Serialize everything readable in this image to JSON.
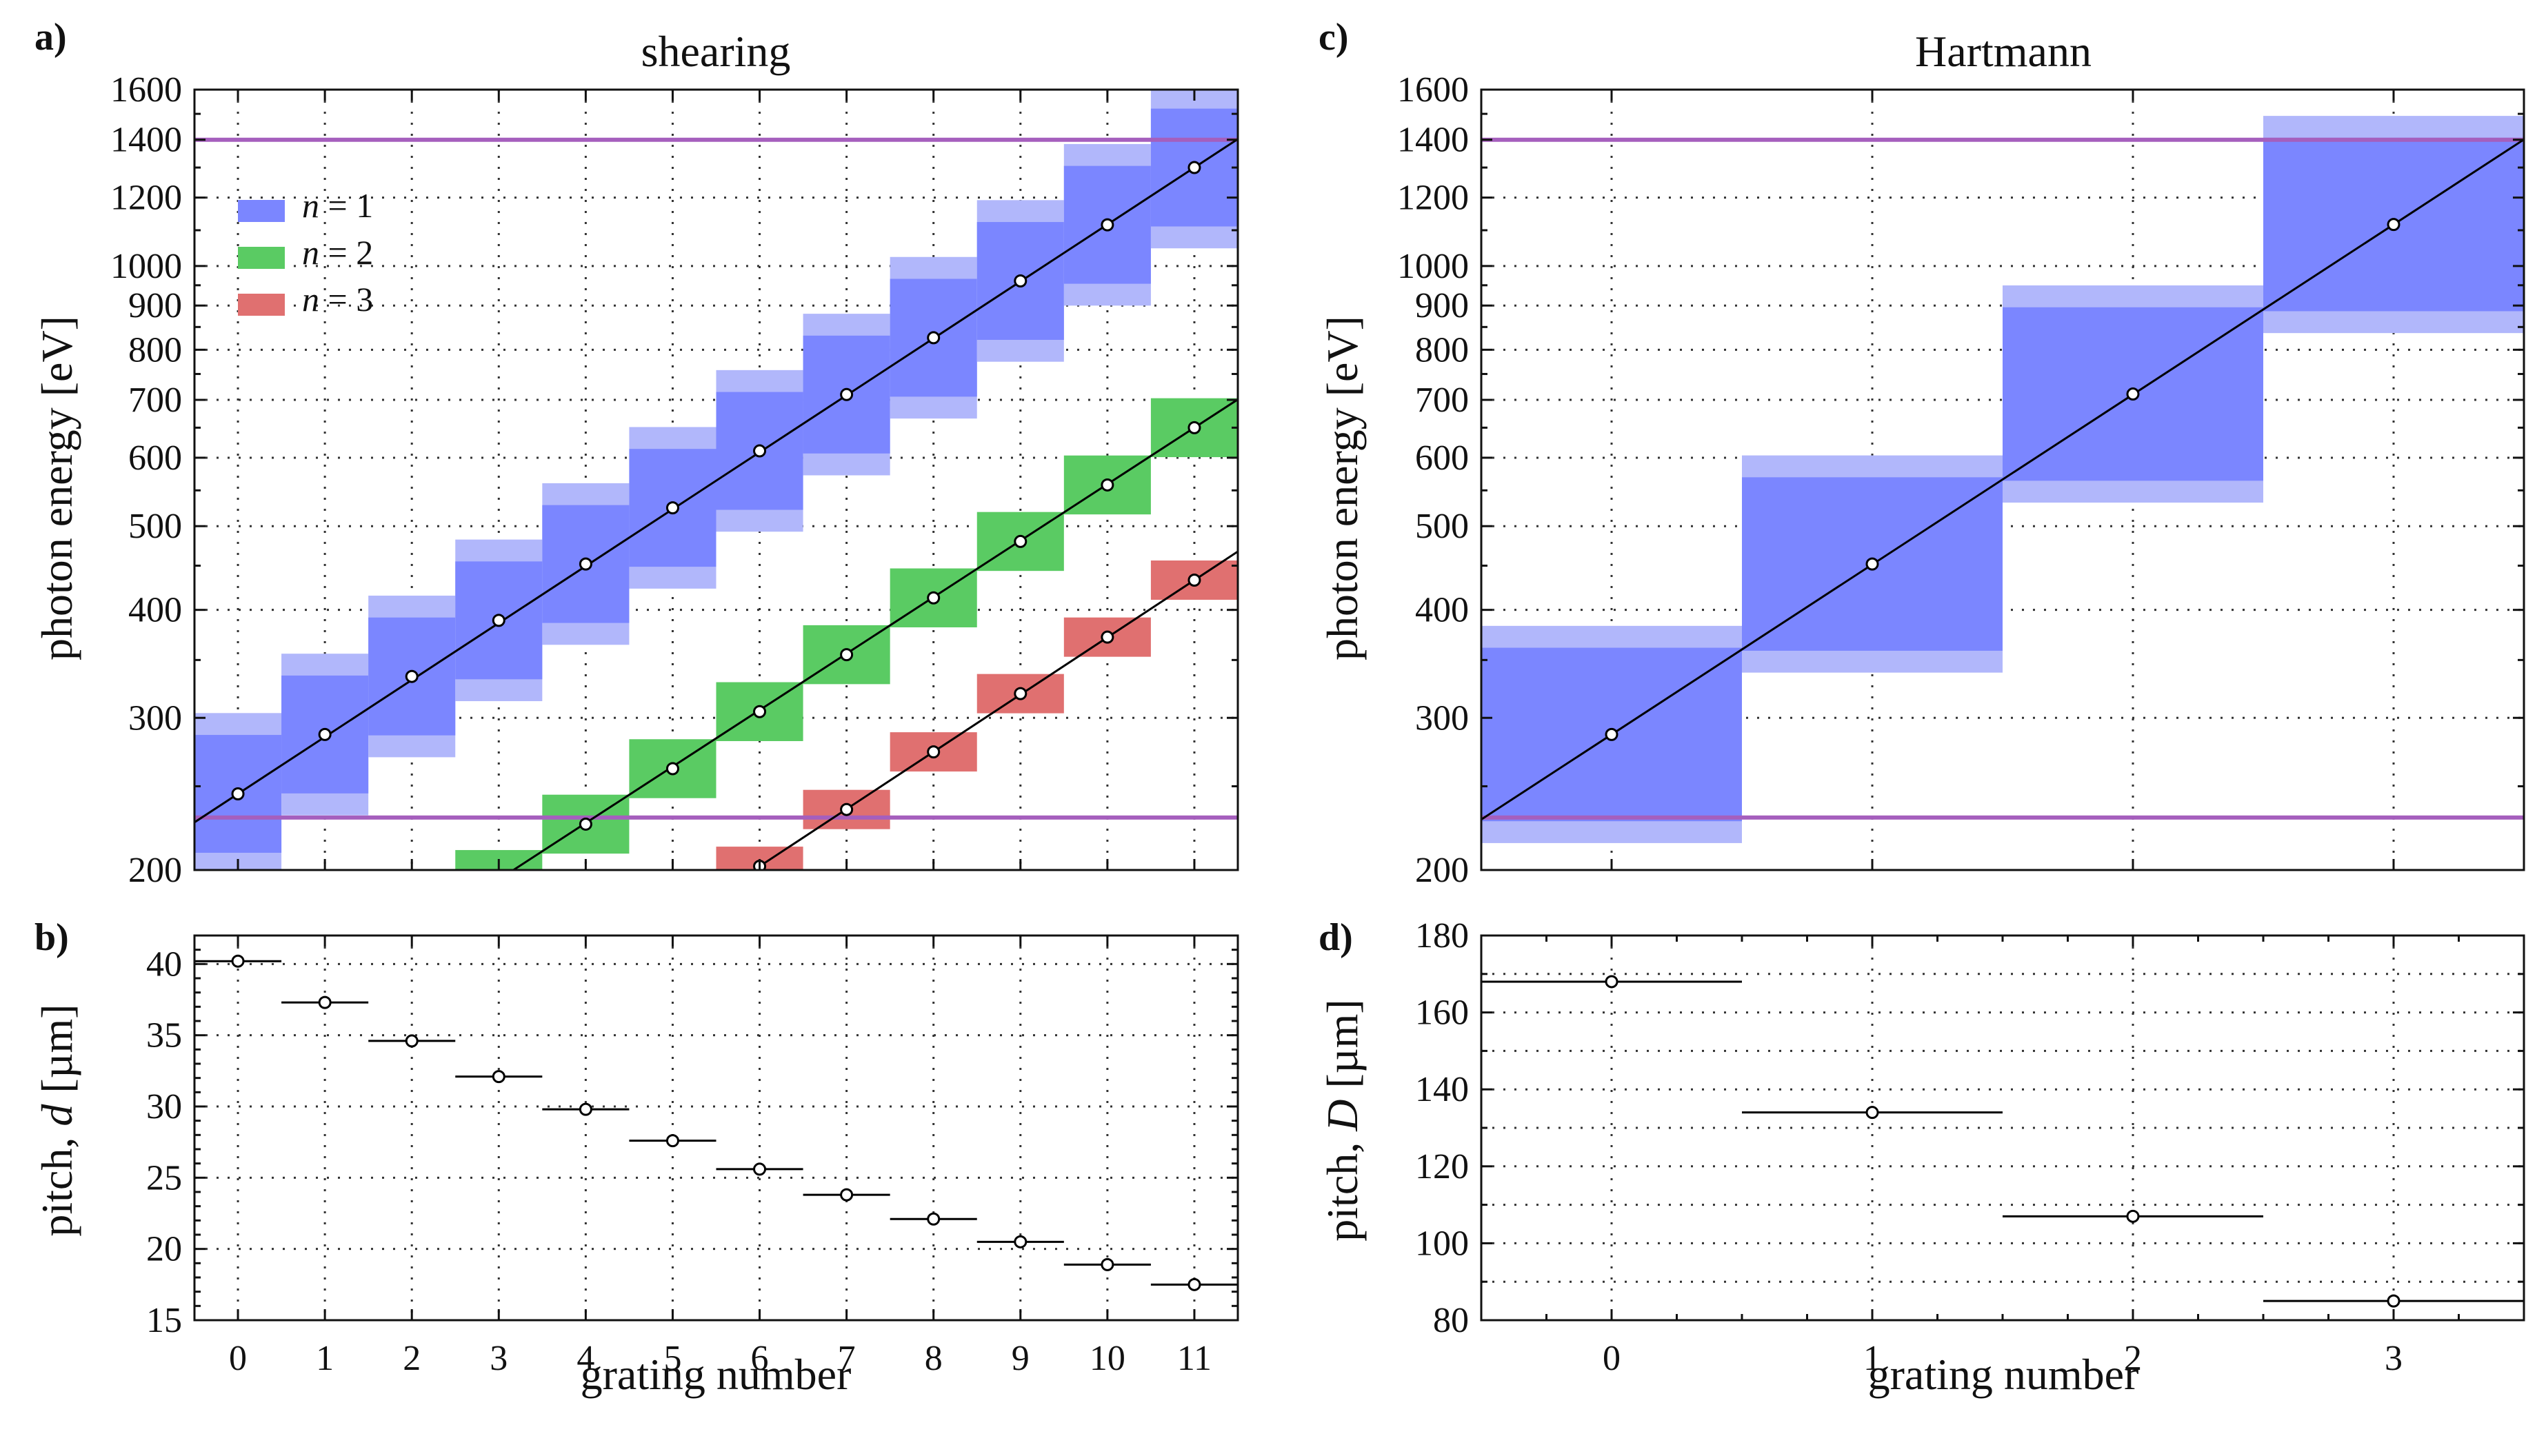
{
  "chart_data": [
    {
      "type": "bar",
      "panel": "a)",
      "title": "shearing",
      "xlabel": "",
      "ylabel": "photon energy [eV]",
      "yscale": "log",
      "ylim": [
        200,
        1600
      ],
      "xlim": [
        -0.5,
        11.5
      ],
      "xticks": [
        0,
        1,
        2,
        3,
        4,
        5,
        6,
        7,
        8,
        9,
        10,
        11
      ],
      "yticks": [
        200,
        300,
        400,
        500,
        600,
        700,
        800,
        900,
        1000,
        1200,
        1400,
        1600
      ],
      "hlines": [
        230,
        1400
      ],
      "legend": [
        {
          "label": "n = 1",
          "color": "#7b86ff"
        },
        {
          "label": "n = 2",
          "color": "#5acb63"
        },
        {
          "label": "n = 3",
          "color": "#e07070"
        }
      ],
      "series": [
        {
          "name": "n = 1",
          "centers": [
            245,
            287,
            335,
            389,
            452,
            525,
            611,
            710,
            826,
            961,
            1116,
            1300
          ]
        },
        {
          "name": "n = 2",
          "centers": [
            195,
            226,
            262,
            305,
            355,
            413,
            480,
            558,
            650
          ]
        },
        {
          "name": "n = 3",
          "centers": [
            202,
            235,
            274,
            320,
            372,
            433
          ]
        }
      ],
      "band_ratio": 1.17
    },
    {
      "type": "scatter",
      "panel": "b)",
      "xlabel": "grating number",
      "ylabel": "pitch, d [µm]",
      "ylim": [
        15,
        42
      ],
      "xlim": [
        -0.5,
        11.5
      ],
      "xticks": [
        0,
        1,
        2,
        3,
        4,
        5,
        6,
        7,
        8,
        9,
        10,
        11
      ],
      "yticks": [
        15,
        20,
        25,
        30,
        35,
        40
      ],
      "x": [
        0,
        1,
        2,
        3,
        4,
        5,
        6,
        7,
        8,
        9,
        10,
        11
      ],
      "y": [
        40.2,
        37.3,
        34.6,
        32.1,
        29.8,
        27.6,
        25.6,
        23.8,
        22.1,
        20.5,
        18.9,
        17.5
      ],
      "xerr": 0.5
    },
    {
      "type": "bar",
      "panel": "c)",
      "title": "Hartmann",
      "xlabel": "",
      "ylabel": "photon energy [eV]",
      "yscale": "log",
      "ylim": [
        200,
        1600
      ],
      "xlim": [
        -0.5,
        3.5
      ],
      "xticks": [
        0,
        1,
        2,
        3
      ],
      "yticks": [
        200,
        300,
        400,
        500,
        600,
        700,
        800,
        900,
        1000,
        1200,
        1400,
        1600
      ],
      "hlines": [
        230,
        1400
      ],
      "series": [
        {
          "name": "n = 1",
          "centers": [
            287,
            452,
            711,
            1117
          ]
        }
      ],
      "band_ratio": 1.26
    },
    {
      "type": "scatter",
      "panel": "d)",
      "xlabel": "grating number",
      "ylabel": "pitch, D [µm]",
      "ylim": [
        80,
        180
      ],
      "xlim": [
        -0.5,
        3.5
      ],
      "xticks": [
        0,
        1,
        2,
        3
      ],
      "yticks": [
        80,
        100,
        120,
        140,
        160,
        180
      ],
      "x": [
        0,
        1,
        2,
        3
      ],
      "y": [
        168,
        134,
        107,
        85
      ],
      "xerr": 0.5
    }
  ],
  "colors": {
    "n1": "#7b86ff",
    "n1_light": "#b1b7fb",
    "n2": "#5acb63",
    "n3": "#e07070",
    "hline": "#a55fbd"
  },
  "labels": {
    "a": "a)",
    "b": "b)",
    "c": "c)",
    "d": "d)",
    "title_a": "shearing",
    "title_c": "Hartmann",
    "ylabel_energy": "photon energy [eV]",
    "ylabel_b_prefix": "pitch, ",
    "ylabel_b_var": "d",
    "ylabel_b_unit": " [µm]",
    "ylabel_d_prefix": "pitch, ",
    "ylabel_d_var": "D",
    "ylabel_d_unit": " [µm]",
    "xlabel": "grating number",
    "legend_var": "n",
    "legend_1": " = 1",
    "legend_2": " = 2",
    "legend_3": " = 3"
  }
}
